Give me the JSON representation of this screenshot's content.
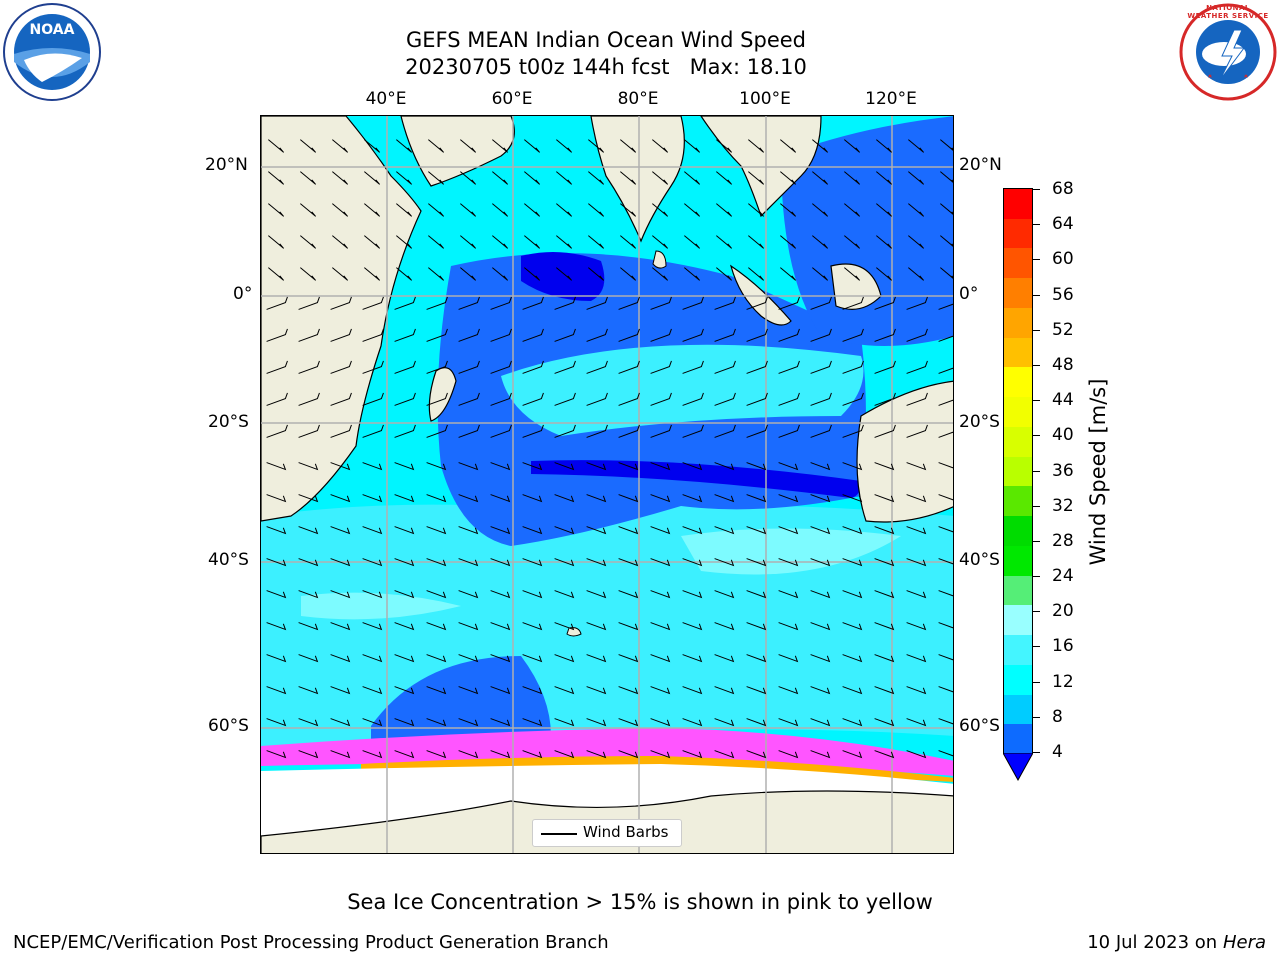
{
  "header": {
    "title_line1": "GEFS MEAN Indian Ocean Wind Speed",
    "title_line2": "20230705 t00z 144h fcst   Max: 18.10"
  },
  "logos": {
    "noaa_text": "NOAA",
    "nws_text": "NATIONAL WEATHER SERVICE"
  },
  "map": {
    "lon_labels": [
      "40°E",
      "60°E",
      "80°E",
      "100°E",
      "120°E"
    ],
    "lat_labels": [
      "20°N",
      "0°",
      "20°S",
      "40°S",
      "60°S"
    ],
    "legend_label": "Wind Barbs",
    "colors": {
      "land": "#efeedd",
      "ice": "#ffffff",
      "speed_4_8": "#1a6bff",
      "speed_8_12": "#00f5ff",
      "speed_12_16": "#3cf0ff",
      "speed_16_20": "#7dfbff"
    }
  },
  "colorbar": {
    "label": "Wind Speed [m/s]",
    "ticks": [
      "68",
      "64",
      "60",
      "56",
      "52",
      "48",
      "44",
      "40",
      "36",
      "32",
      "28",
      "24",
      "20",
      "16",
      "12",
      "8",
      "4"
    ],
    "colors_top_to_bottom": [
      "#ff0000",
      "#ff2a00",
      "#ff5500",
      "#ff7f00",
      "#ffa500",
      "#ffc000",
      "#ffff00",
      "#f2ff00",
      "#d8ff00",
      "#b9ff00",
      "#5ae800",
      "#00dc00",
      "#00e800",
      "#55ee77",
      "#99ffff",
      "#44f5ff",
      "#00ffff",
      "#00ccff",
      "#0d6bff"
    ],
    "under_color": "#0000ff"
  },
  "caption": "Sea Ice Concentration > 15% is shown in pink to yellow",
  "footer": {
    "left": "NCEP/EMC/Verification Post Processing Product Generation Branch",
    "right_prefix": "10 Jul 2023 on ",
    "right_host": "Hera"
  }
}
